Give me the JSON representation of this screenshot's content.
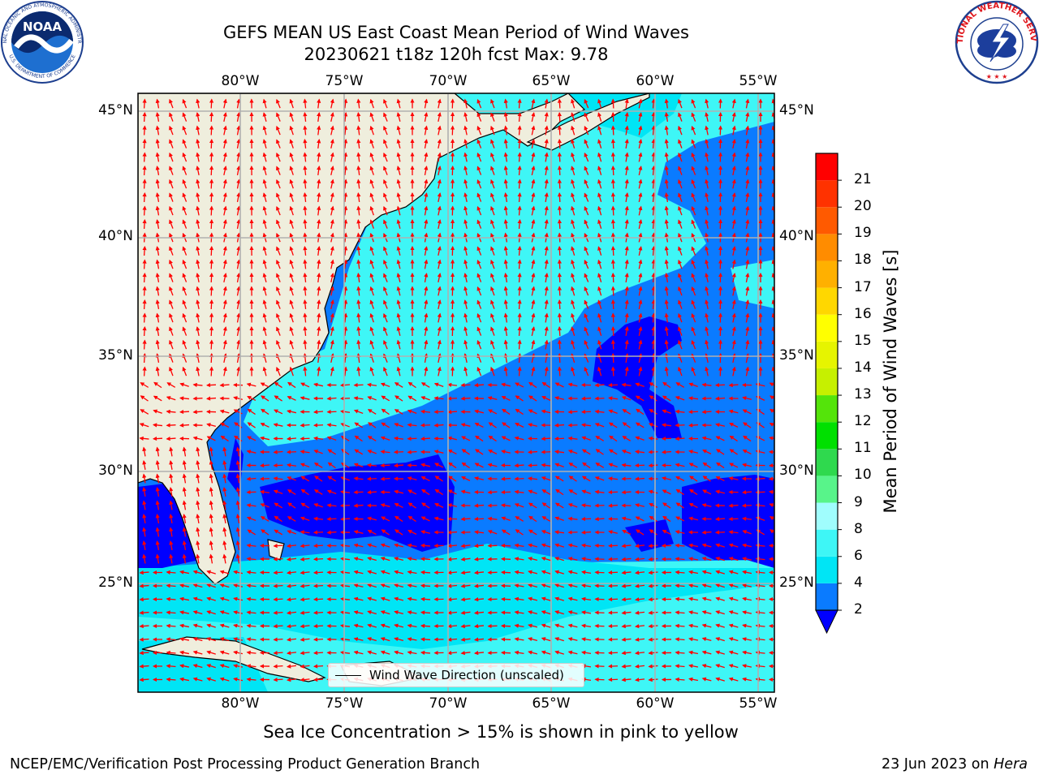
{
  "title": {
    "line1": "GEFS MEAN US East Coast Mean Period of Wind Waves",
    "line2": "20230621 t18z 120h fcst   Max: 9.78"
  },
  "map": {
    "lon_labels": [
      "80°W",
      "75°W",
      "70°W",
      "65°W",
      "60°W",
      "55°W"
    ],
    "lat_labels": [
      "45°N",
      "40°N",
      "35°N",
      "30°N",
      "25°N"
    ],
    "extent": {
      "lon_min": -85,
      "lon_max": -54.3,
      "lat_min": 20.5,
      "lat_max": 45.8
    },
    "colors": {
      "land": "#efeedd",
      "coastline": "#000000",
      "grid": "#b0b0b0",
      "arrow": "#ff0000"
    },
    "legend_label": "Wind Wave Direction (unscaled)",
    "field_description": "Mean wind-wave period, mostly 2–8 s; 6–8 s (light cyan) along US coast and Caribbean, 2–4 s (dodger blue) offshore, <2 s (blue) patches near 60°W/34°N, 73°W/28°N and 57°W/28°N"
  },
  "colorbar": {
    "label": "Mean Period of Wind Waves [s]",
    "ticks": [
      "2",
      "4",
      "6",
      "8",
      "9",
      "10",
      "11",
      "12",
      "13",
      "14",
      "15",
      "16",
      "17",
      "18",
      "19",
      "20",
      "21"
    ],
    "bins": [
      {
        "from": 2,
        "to": 4,
        "color": "#0a7bff"
      },
      {
        "from": 4,
        "to": 6,
        "color": "#00e5f5"
      },
      {
        "from": 6,
        "to": 8,
        "color": "#3ef6f6"
      },
      {
        "from": 8,
        "to": 9,
        "color": "#a0fdfd"
      },
      {
        "from": 9,
        "to": 10,
        "color": "#58f48a"
      },
      {
        "from": 10,
        "to": 11,
        "color": "#2fd94e"
      },
      {
        "from": 11,
        "to": 12,
        "color": "#00e000"
      },
      {
        "from": 12,
        "to": 13,
        "color": "#54e40a"
      },
      {
        "from": 13,
        "to": 14,
        "color": "#c6f000"
      },
      {
        "from": 14,
        "to": 15,
        "color": "#e6f400"
      },
      {
        "from": 15,
        "to": 16,
        "color": "#ffff00"
      },
      {
        "from": 16,
        "to": 17,
        "color": "#ffd700"
      },
      {
        "from": 17,
        "to": 18,
        "color": "#ffb000"
      },
      {
        "from": 18,
        "to": 19,
        "color": "#ff8c00"
      },
      {
        "from": 19,
        "to": 20,
        "color": "#ff5a00"
      },
      {
        "from": 20,
        "to": 21,
        "color": "#ff3200"
      },
      {
        "from": 21,
        "to": 22,
        "color": "#ff0000"
      }
    ],
    "under_color": "#0000ff"
  },
  "footer": {
    "sea_ice": "Sea Ice Concentration > 15% is shown in pink to yellow",
    "left": "NCEP/EMC/Verification Post Processing Product Generation Branch",
    "date": "23 Jun 2023 on ",
    "machine": "Hera"
  },
  "logos": {
    "noaa_text": "NOAA",
    "noaa_ring": "NATIONAL OCEANIC AND ATMOSPHERIC ADMINISTRATION",
    "noaa_ring_bottom": "U.S. DEPARTMENT OF COMMERCE",
    "nws_ring": "NATIONAL WEATHER SERVICE"
  }
}
